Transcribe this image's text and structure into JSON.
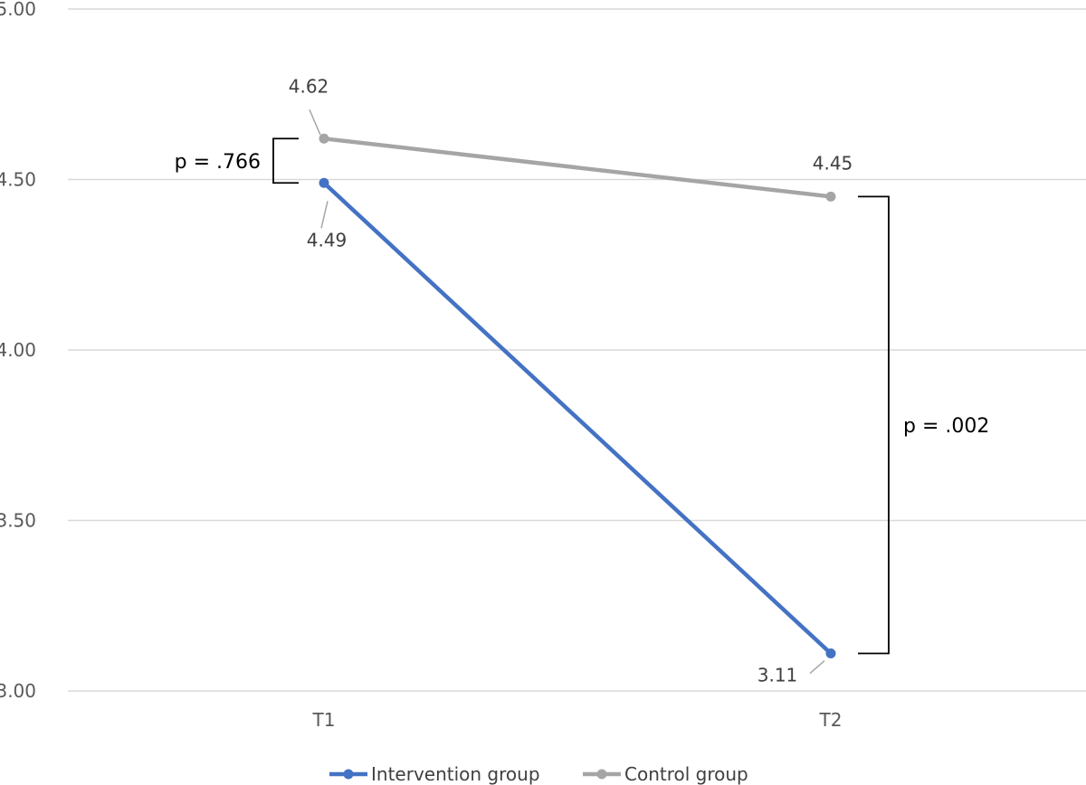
{
  "chart_data": {
    "type": "line",
    "title": "",
    "xlabel": "",
    "ylabel": "",
    "categories": [
      "T1",
      "T2"
    ],
    "ylim": [
      3.0,
      5.0
    ],
    "yticks": [
      "3.00",
      "3.50",
      "4.00",
      "4.50",
      "5.00"
    ],
    "grid": true,
    "legend_position": "bottom",
    "series": [
      {
        "name": "Intervention group",
        "values": [
          4.49,
          3.11
        ],
        "labels": [
          "4.49",
          "3.11"
        ],
        "color": "#4472C4"
      },
      {
        "name": "Control group",
        "values": [
          4.62,
          4.45
        ],
        "labels": [
          "4.62",
          "4.45"
        ],
        "color": "#A5A5A5"
      }
    ],
    "annotations": [
      {
        "text": "p = .766",
        "category": "T1",
        "between": [
          4.62,
          4.49
        ]
      },
      {
        "text": "p = .002",
        "category": "T2",
        "between": [
          4.45,
          3.11
        ]
      }
    ]
  }
}
